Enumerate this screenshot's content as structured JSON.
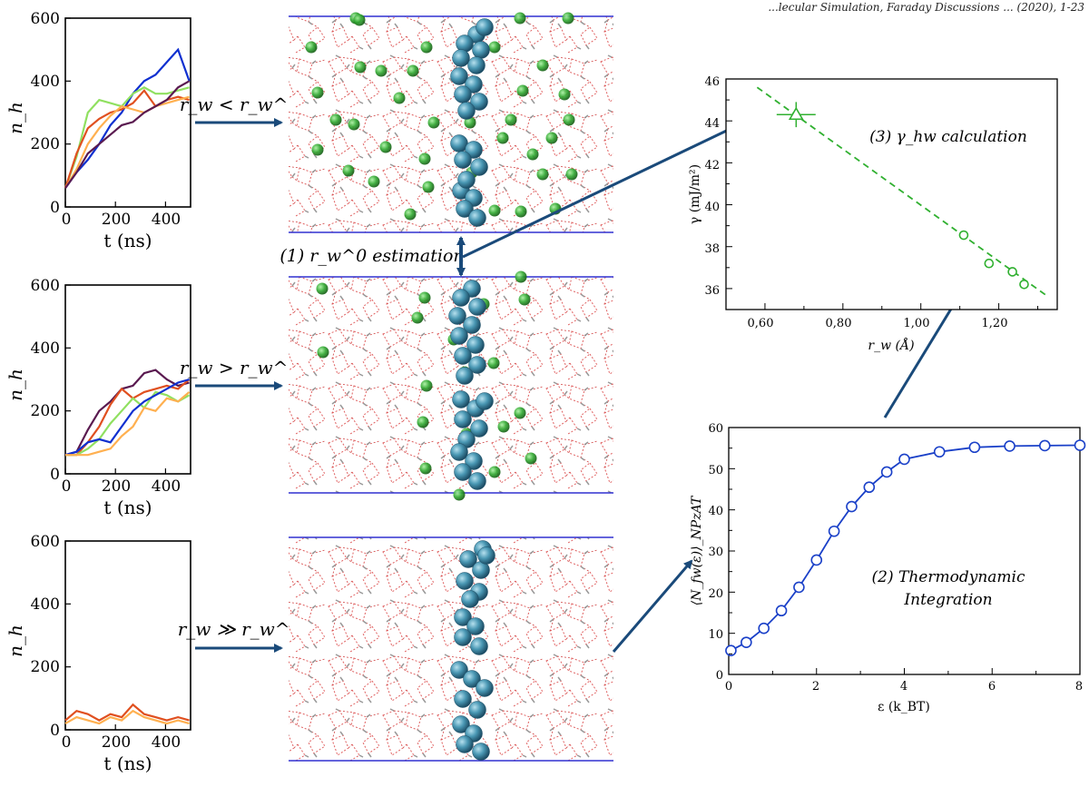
{
  "header_fragment": "...lecular Simulation, Faraday Discussions ... (2020), 1-23",
  "small_plots": [
    {
      "ylabel": "n_h",
      "xlabel": "t (ns)",
      "yticks": [
        "0",
        "200",
        "400",
        "600"
      ],
      "xticks": [
        "0",
        "200",
        "400"
      ],
      "arrow_label": "r_w < r_w^0",
      "series": [
        {
          "color": "#1030d0",
          "values": [
            60,
            110,
            150,
            200,
            260,
            300,
            360,
            400,
            420,
            460,
            500,
            400
          ]
        },
        {
          "color": "#90e060",
          "values": [
            60,
            160,
            300,
            340,
            330,
            320,
            360,
            380,
            360,
            360,
            370,
            380
          ]
        },
        {
          "color": "#e05020",
          "values": [
            60,
            170,
            250,
            280,
            300,
            310,
            330,
            370,
            320,
            340,
            350,
            340
          ]
        },
        {
          "color": "#ffb050",
          "values": [
            60,
            120,
            200,
            250,
            290,
            320,
            310,
            300,
            320,
            330,
            340,
            350
          ]
        },
        {
          "color": "#5a1a50",
          "values": [
            60,
            110,
            170,
            200,
            230,
            260,
            270,
            300,
            320,
            340,
            380,
            400
          ]
        }
      ]
    },
    {
      "ylabel": "n_h",
      "xlabel": "t (ns)",
      "yticks": [
        "0",
        "200",
        "400",
        "600"
      ],
      "xticks": [
        "0",
        "200",
        "400"
      ],
      "arrow_label": "r_w > r_w^0",
      "series": [
        {
          "color": "#5a1a50",
          "values": [
            60,
            70,
            140,
            200,
            230,
            270,
            280,
            320,
            330,
            300,
            280,
            290
          ]
        },
        {
          "color": "#e05020",
          "values": [
            60,
            60,
            100,
            150,
            220,
            270,
            240,
            260,
            270,
            280,
            270,
            300
          ]
        },
        {
          "color": "#90e060",
          "values": [
            60,
            60,
            80,
            110,
            160,
            200,
            240,
            210,
            260,
            250,
            230,
            250
          ]
        },
        {
          "color": "#1030d0",
          "values": [
            60,
            70,
            100,
            110,
            100,
            150,
            200,
            230,
            250,
            270,
            290,
            300
          ]
        },
        {
          "color": "#ffb050",
          "values": [
            60,
            60,
            60,
            70,
            80,
            120,
            150,
            210,
            200,
            240,
            230,
            260
          ]
        }
      ]
    },
    {
      "ylabel": "n_h",
      "xlabel": "t (ns)",
      "yticks": [
        "0",
        "200",
        "400",
        "600"
      ],
      "xticks": [
        "0",
        "200",
        "400"
      ],
      "arrow_label": "r_w ≫ r_w^0",
      "series": [
        {
          "color": "#e05020",
          "values": [
            30,
            60,
            50,
            30,
            50,
            40,
            80,
            50,
            40,
            30,
            40,
            30
          ]
        },
        {
          "color": "#ffb050",
          "values": [
            20,
            40,
            30,
            20,
            40,
            30,
            60,
            40,
            30,
            20,
            30,
            20
          ]
        }
      ]
    }
  ],
  "estimation_label": "(1) r_w^0 estimation",
  "gamma_plot": {
    "ylabel": "γ (mJ/m²)",
    "xlabel": "r_w (Å)",
    "xticks": [
      "0,60",
      "0,80",
      "1,00",
      "1,20"
    ],
    "yticks": [
      "36",
      "38",
      "40",
      "42",
      "44",
      "46"
    ],
    "annotation": "(3) γ_hw calculation",
    "color": "#30b030"
  },
  "ti_plot": {
    "ylabel": "⟨N_fw(ε)⟩_NPzAT",
    "xlabel": "ε (k_BT)",
    "xticks": [
      "0",
      "2",
      "4",
      "6",
      "8"
    ],
    "yticks": [
      "0",
      "10",
      "20",
      "30",
      "40",
      "50",
      "60"
    ],
    "annotation_line1": "(2) Thermodynamic",
    "annotation_line2": "Integration",
    "color": "#1a40c8"
  },
  "chart_data": [
    {
      "type": "line",
      "ylabel": "n_h",
      "xlabel": "t (ns)",
      "xlim": [
        0,
        500
      ],
      "ylim": [
        0,
        600
      ],
      "x": [
        0,
        45,
        90,
        135,
        180,
        225,
        270,
        315,
        360,
        405,
        450,
        495
      ],
      "series": [
        {
          "color": "#1030d0",
          "values": [
            60,
            110,
            150,
            200,
            260,
            300,
            360,
            400,
            420,
            460,
            500,
            400
          ]
        },
        {
          "color": "#90e060",
          "values": [
            60,
            160,
            300,
            340,
            330,
            320,
            360,
            380,
            360,
            360,
            370,
            380
          ]
        },
        {
          "color": "#e05020",
          "values": [
            60,
            170,
            250,
            280,
            300,
            310,
            330,
            370,
            320,
            340,
            350,
            340
          ]
        },
        {
          "color": "#ffb050",
          "values": [
            60,
            120,
            200,
            250,
            290,
            320,
            310,
            300,
            320,
            330,
            340,
            350
          ]
        },
        {
          "color": "#5a1a50",
          "values": [
            60,
            110,
            170,
            200,
            230,
            260,
            270,
            300,
            320,
            340,
            380,
            400
          ]
        }
      ]
    },
    {
      "type": "line",
      "ylabel": "n_h",
      "xlabel": "t (ns)",
      "xlim": [
        0,
        500
      ],
      "ylim": [
        0,
        600
      ],
      "x": [
        0,
        45,
        90,
        135,
        180,
        225,
        270,
        315,
        360,
        405,
        450,
        495
      ],
      "series": [
        {
          "color": "#5a1a50",
          "values": [
            60,
            70,
            140,
            200,
            230,
            270,
            280,
            320,
            330,
            300,
            280,
            290
          ]
        },
        {
          "color": "#e05020",
          "values": [
            60,
            60,
            100,
            150,
            220,
            270,
            240,
            260,
            270,
            280,
            270,
            300
          ]
        },
        {
          "color": "#90e060",
          "values": [
            60,
            60,
            80,
            110,
            160,
            200,
            240,
            210,
            260,
            250,
            230,
            250
          ]
        },
        {
          "color": "#1030d0",
          "values": [
            60,
            70,
            100,
            110,
            100,
            150,
            200,
            230,
            250,
            270,
            290,
            300
          ]
        },
        {
          "color": "#ffb050",
          "values": [
            60,
            60,
            60,
            70,
            80,
            120,
            150,
            210,
            200,
            240,
            230,
            260
          ]
        }
      ]
    },
    {
      "type": "line",
      "ylabel": "n_h",
      "xlabel": "t (ns)",
      "xlim": [
        0,
        500
      ],
      "ylim": [
        0,
        600
      ],
      "x": [
        0,
        45,
        90,
        135,
        180,
        225,
        270,
        315,
        360,
        405,
        450,
        495
      ],
      "series": [
        {
          "color": "#e05020",
          "values": [
            30,
            60,
            50,
            30,
            50,
            40,
            80,
            50,
            40,
            30,
            40,
            30
          ]
        },
        {
          "color": "#ffb050",
          "values": [
            20,
            40,
            30,
            20,
            40,
            30,
            60,
            40,
            30,
            20,
            30,
            20
          ]
        }
      ]
    },
    {
      "type": "scatter",
      "xlabel": "r_w (Å)",
      "ylabel": "γ (mJ/m²)",
      "xlim": [
        0.5,
        1.35
      ],
      "ylim": [
        35,
        46
      ],
      "points": [
        {
          "x": 0.68,
          "y": 44.3,
          "marker": "triangle",
          "xerr": 0.05,
          "yerr": 0.6
        },
        {
          "x": 1.11,
          "y": 38.55,
          "marker": "circle"
        },
        {
          "x": 1.175,
          "y": 37.2,
          "marker": "circle"
        },
        {
          "x": 1.235,
          "y": 36.8,
          "marker": "circle"
        },
        {
          "x": 1.265,
          "y": 36.2,
          "marker": "circle"
        }
      ],
      "fit_line": {
        "x": [
          0.58,
          1.32
        ],
        "y": [
          45.6,
          35.7
        ],
        "style": "dashed"
      }
    },
    {
      "type": "line",
      "xlabel": "ε (k_BT)",
      "ylabel": "⟨N_fw(ε)⟩_NPzAT",
      "xlim": [
        0,
        8
      ],
      "ylim": [
        0,
        60
      ],
      "x": [
        0.05,
        0.4,
        0.8,
        1.2,
        1.6,
        2.0,
        2.4,
        2.8,
        3.2,
        3.6,
        4.0,
        4.8,
        5.6,
        6.4,
        7.2,
        8.0
      ],
      "values": [
        5.8,
        7.8,
        11.2,
        15.5,
        21.2,
        27.8,
        34.8,
        40.8,
        45.5,
        49.2,
        52.3,
        54.1,
        55.2,
        55.5,
        55.6,
        55.7
      ]
    }
  ]
}
